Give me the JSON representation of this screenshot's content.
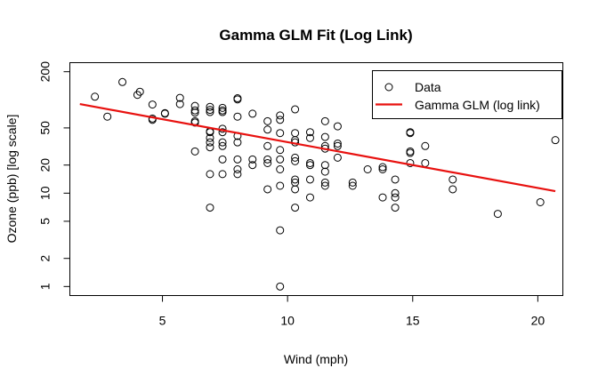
{
  "chart_data": {
    "type": "scatter",
    "title": "Gamma GLM Fit (Log Link)",
    "xlabel": "Wind (mph)",
    "ylabel": "Ozone (ppb) [log scale]",
    "xlim": [
      1.3,
      21.0
    ],
    "ylim": [
      0.8,
      250
    ],
    "y_log_scale": true,
    "x_ticks": [
      5,
      10,
      15,
      20
    ],
    "y_ticks": [
      1,
      2,
      5,
      10,
      20,
      50,
      200
    ],
    "grid": false,
    "legend_position": "top-right",
    "colors": {
      "points": "#000000",
      "fit": "#e8110f"
    },
    "series": [
      {
        "name": "Data",
        "type": "scatter",
        "points": [
          [
            2.3,
            108
          ],
          [
            2.8,
            66
          ],
          [
            3.4,
            155
          ],
          [
            4.0,
            113
          ],
          [
            4.1,
            122
          ],
          [
            4.6,
            89
          ],
          [
            4.6,
            61
          ],
          [
            4.6,
            63
          ],
          [
            5.1,
            71
          ],
          [
            5.1,
            72
          ],
          [
            5.7,
            105
          ],
          [
            5.7,
            90
          ],
          [
            6.3,
            86
          ],
          [
            6.3,
            73
          ],
          [
            6.3,
            77
          ],
          [
            6.3,
            57
          ],
          [
            6.3,
            59
          ],
          [
            6.3,
            28
          ],
          [
            6.9,
            84
          ],
          [
            6.9,
            78
          ],
          [
            6.9,
            74
          ],
          [
            6.9,
            46
          ],
          [
            6.9,
            45
          ],
          [
            6.9,
            39
          ],
          [
            6.9,
            35
          ],
          [
            6.9,
            31
          ],
          [
            6.9,
            16
          ],
          [
            6.9,
            7
          ],
          [
            7.4,
            82
          ],
          [
            7.4,
            77
          ],
          [
            7.4,
            74
          ],
          [
            7.4,
            49
          ],
          [
            7.4,
            45
          ],
          [
            7.4,
            35
          ],
          [
            7.4,
            32
          ],
          [
            7.4,
            23
          ],
          [
            7.4,
            16
          ],
          [
            8.0,
            104
          ],
          [
            8.0,
            101
          ],
          [
            8.0,
            66
          ],
          [
            8.0,
            41
          ],
          [
            8.0,
            35
          ],
          [
            8.0,
            23
          ],
          [
            8.0,
            18
          ],
          [
            8.0,
            16
          ],
          [
            8.6,
            71
          ],
          [
            8.6,
            23
          ],
          [
            8.6,
            20
          ],
          [
            9.2,
            59
          ],
          [
            9.2,
            48
          ],
          [
            9.2,
            32
          ],
          [
            9.2,
            23
          ],
          [
            9.2,
            21
          ],
          [
            9.2,
            11
          ],
          [
            9.7,
            68
          ],
          [
            9.7,
            61
          ],
          [
            9.7,
            44
          ],
          [
            9.7,
            29
          ],
          [
            9.7,
            23
          ],
          [
            9.7,
            18
          ],
          [
            9.7,
            12
          ],
          [
            9.7,
            4
          ],
          [
            9.7,
            1
          ],
          [
            10.3,
            79
          ],
          [
            10.3,
            44
          ],
          [
            10.3,
            37
          ],
          [
            10.3,
            35
          ],
          [
            10.3,
            24
          ],
          [
            10.3,
            22
          ],
          [
            10.3,
            14
          ],
          [
            10.3,
            13
          ],
          [
            10.3,
            11
          ],
          [
            10.3,
            7
          ],
          [
            10.9,
            45
          ],
          [
            10.9,
            39
          ],
          [
            10.9,
            21
          ],
          [
            10.9,
            20
          ],
          [
            10.9,
            14
          ],
          [
            10.9,
            9
          ],
          [
            11.5,
            59
          ],
          [
            11.5,
            40
          ],
          [
            11.5,
            32
          ],
          [
            11.5,
            30
          ],
          [
            11.5,
            20
          ],
          [
            11.5,
            17
          ],
          [
            11.5,
            13
          ],
          [
            11.5,
            12
          ],
          [
            12.0,
            52
          ],
          [
            12.0,
            34
          ],
          [
            12.0,
            32
          ],
          [
            12.0,
            24
          ],
          [
            12.6,
            13
          ],
          [
            12.6,
            12
          ],
          [
            13.2,
            18
          ],
          [
            13.8,
            19
          ],
          [
            13.8,
            18
          ],
          [
            13.8,
            9
          ],
          [
            14.3,
            14
          ],
          [
            14.3,
            10
          ],
          [
            14.3,
            9
          ],
          [
            14.3,
            7
          ],
          [
            14.9,
            45
          ],
          [
            14.9,
            44
          ],
          [
            14.9,
            28
          ],
          [
            14.9,
            27
          ],
          [
            14.9,
            21
          ],
          [
            15.5,
            32
          ],
          [
            15.5,
            21
          ],
          [
            16.6,
            14
          ],
          [
            16.6,
            11
          ],
          [
            18.4,
            6
          ],
          [
            20.1,
            8
          ],
          [
            20.7,
            37
          ]
        ]
      },
      {
        "name": "Gamma GLM (log link)",
        "type": "line",
        "points": [
          [
            1.7,
            90
          ],
          [
            20.7,
            10.5
          ]
        ]
      }
    ]
  }
}
